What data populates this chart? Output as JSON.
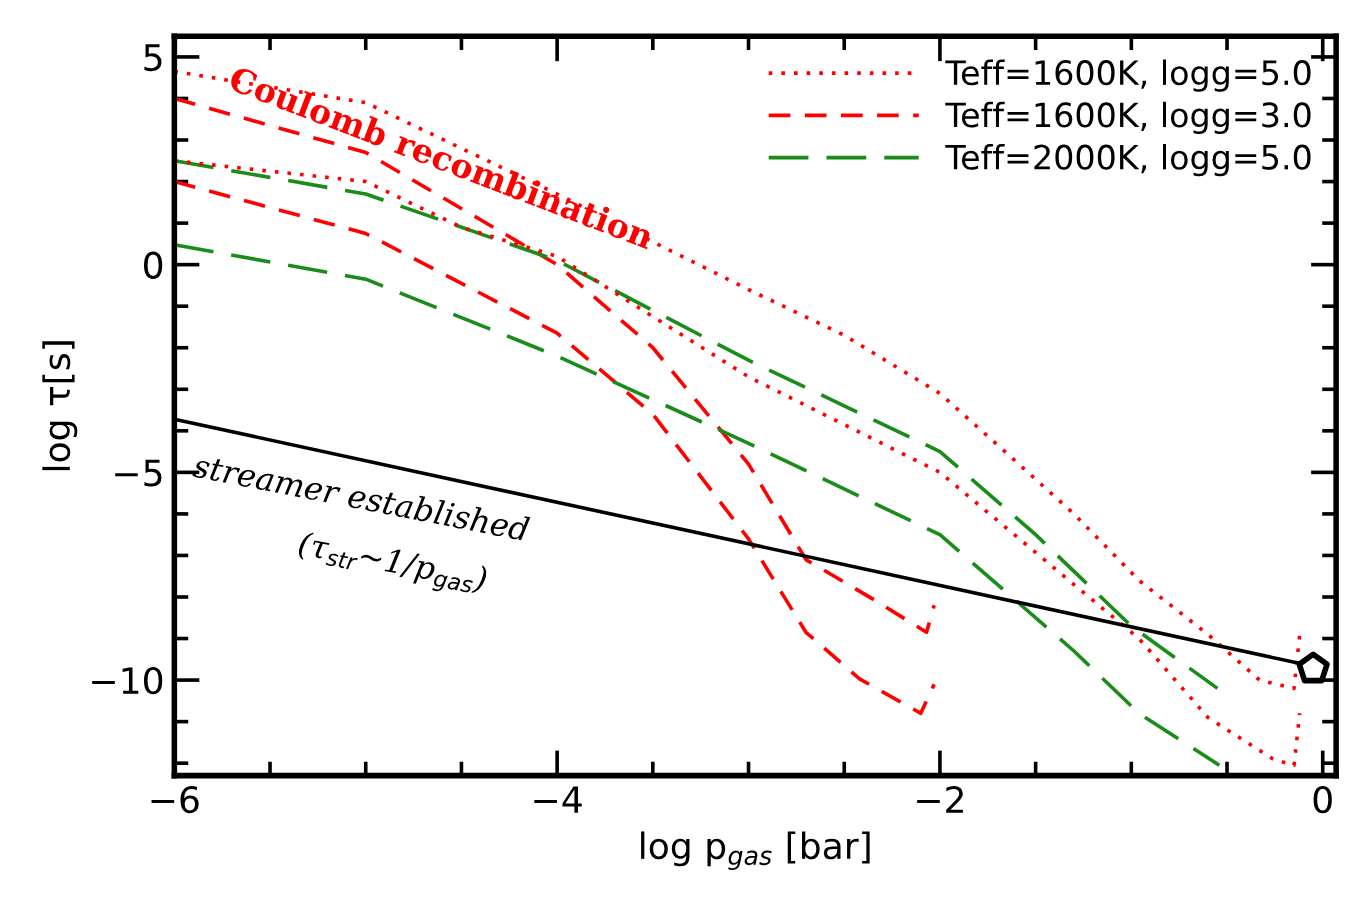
{
  "chart_data": {
    "type": "line",
    "xlabel": "log p$_{gas}$ [bar]",
    "ylabel": "log τ[s]",
    "xlim": [
      -6,
      0.07
    ],
    "ylim": [
      -12.3,
      5.5
    ],
    "xticks": [
      -6,
      {
        "value": -5.5,
        "label": null
      },
      {
        "value": -5,
        "label": null
      },
      {
        "value": -4.5,
        "label": null
      },
      -4,
      {
        "value": -3.5,
        "label": null
      },
      {
        "value": -3,
        "label": null
      },
      {
        "value": -2.5,
        "label": null
      },
      -2,
      {
        "value": -1.5,
        "label": null
      },
      {
        "value": -1,
        "label": null
      },
      {
        "value": -0.5,
        "label": null
      },
      0
    ],
    "yticks": [
      {
        "value": -12,
        "label": null
      },
      {
        "value": -11,
        "label": null
      },
      -10,
      {
        "value": -9,
        "label": null
      },
      {
        "value": -8,
        "label": null
      },
      {
        "value": -7,
        "label": null
      },
      {
        "value": -6,
        "label": null
      },
      -5,
      {
        "value": -4,
        "label": null
      },
      {
        "value": -3,
        "label": null
      },
      {
        "value": -2,
        "label": null
      },
      {
        "value": -1,
        "label": null
      },
      0,
      {
        "value": 1,
        "label": null
      },
      {
        "value": 2,
        "label": null
      },
      {
        "value": 3,
        "label": null
      },
      {
        "value": 4,
        "label": null
      },
      5
    ],
    "grid": false,
    "legend": "top right",
    "series": [
      {
        "name": "Teff=1600K, logg=5.0",
        "color": "#ff0000",
        "line_style": "dotted",
        "x": [
          -6,
          -5,
          -4,
          -3,
          -2.5,
          -2,
          -1.66,
          -1.3,
          -0.96,
          -0.6,
          -0.33,
          -0.15,
          -0.12
        ],
        "values": [
          4.65,
          3.9,
          1.7,
          -0.6,
          -1.7,
          -3.1,
          -4.5,
          -6.0,
          -7.6,
          -8.9,
          -10.0,
          -10.2,
          -8.9
        ]
      },
      {
        "name": "Teff=1600K, logg=3.0",
        "color": "#ff0000",
        "line_style": "dashed",
        "x": [
          -6,
          -5,
          -4,
          -3.5,
          -3,
          -2.7,
          -2.35,
          -2.07,
          -2.03
        ],
        "values": [
          4.0,
          2.7,
          0.0,
          -2.0,
          -4.8,
          -7.1,
          -8.05,
          -8.85,
          -8.2
        ]
      },
      {
        "name": "Teff=2000K, logg=5.0",
        "color": "#1a8c1a",
        "line_style": "dashed",
        "x": [
          -6,
          -5,
          -4,
          -3,
          -2,
          -1.5,
          -1,
          -0.55
        ],
        "values": [
          2.5,
          1.7,
          0.1,
          -2.3,
          -4.5,
          -6.5,
          -8.7,
          -10.2
        ]
      },
      {
        "color": "#ff0000",
        "line_style": "dotted",
        "x": [
          -6,
          -5,
          -4.5,
          -4,
          -3,
          -2,
          -1.3,
          -0.96,
          -0.6,
          -0.26,
          -0.15,
          -0.12
        ],
        "values": [
          2.5,
          2.0,
          0.9,
          0.2,
          -2.7,
          -5.0,
          -7.7,
          -9.0,
          -10.9,
          -11.9,
          -12.05,
          -10.8
        ]
      },
      {
        "color": "#ff0000",
        "line_style": "dashed",
        "x": [
          -6,
          -5,
          -4,
          -3.5,
          -3,
          -2.7,
          -2.42,
          -2.1,
          -2.03
        ],
        "values": [
          2.0,
          0.75,
          -1.65,
          -3.6,
          -6.6,
          -8.85,
          -9.97,
          -10.8,
          -10.1
        ]
      },
      {
        "color": "#1a8c1a",
        "line_style": "dashed",
        "x": [
          -6,
          -5,
          -4,
          -3,
          -2,
          -1.3,
          -0.96,
          -0.54
        ],
        "values": [
          0.48,
          -0.35,
          -2.2,
          -4.3,
          -6.5,
          -9.3,
          -10.8,
          -12.05
        ]
      },
      {
        "color": "#000000",
        "line_style": "solid",
        "x": [
          -6,
          -0.12
        ],
        "values": [
          -3.72,
          -9.6
        ]
      },
      {
        "type": "scatter",
        "color": "#000000",
        "x": [
          -0.05
        ],
        "values": [
          -9.73
        ]
      }
    ],
    "annotations": [
      "Coulomb recombination",
      "streamer established",
      "(τ$_{str}$~1/p$_{gas}$)"
    ]
  }
}
